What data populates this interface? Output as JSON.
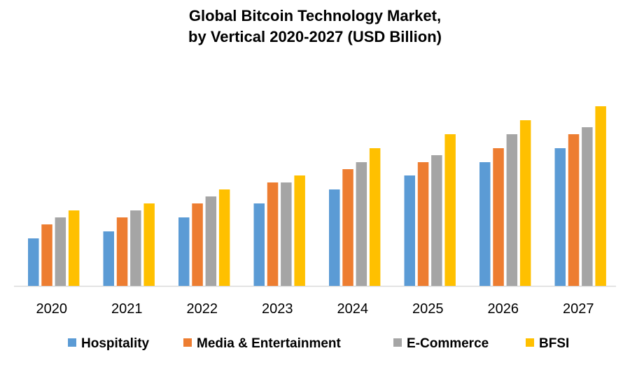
{
  "chart_data": {
    "type": "bar",
    "title_line1": "Global Bitcoin Technology Market,",
    "title_line2": "by Vertical 2020-2027 (USD Billion)",
    "xlabel": "",
    "ylabel": "",
    "categories": [
      "2020",
      "2021",
      "2022",
      "2023",
      "2024",
      "2025",
      "2026",
      "2027"
    ],
    "series": [
      {
        "name": "Hospitality",
        "color": "#5B9BD5",
        "values": [
          6.8,
          7.8,
          9.8,
          11.8,
          13.8,
          15.8,
          17.7,
          19.7
        ]
      },
      {
        "name": "Media & Entertainment",
        "color": "#ED7D31",
        "values": [
          8.8,
          9.8,
          11.8,
          14.8,
          16.7,
          17.7,
          19.7,
          21.7
        ]
      },
      {
        "name": "E-Commerce",
        "color": "#A5A5A5",
        "values": [
          9.8,
          10.8,
          12.8,
          14.8,
          17.7,
          18.7,
          21.7,
          22.7
        ]
      },
      {
        "name": "BFSI",
        "color": "#FFC000",
        "values": [
          10.8,
          11.8,
          13.8,
          15.8,
          19.7,
          21.7,
          23.7,
          25.7
        ]
      }
    ],
    "ylim": [
      0,
      26
    ],
    "y_axis_shown": false,
    "grid": false,
    "legend_placement": "bottom"
  }
}
